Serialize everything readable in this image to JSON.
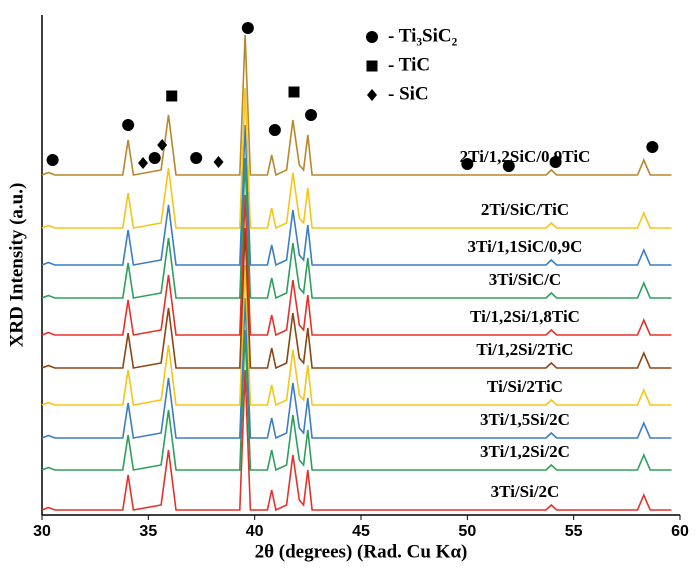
{
  "chart_data": {
    "type": "line",
    "x_label": "2θ (degrees) (Rad. Cu Kα)",
    "y_label": "XRD Intensity (a.u.)",
    "xlim": [
      30,
      60
    ],
    "xticks": [
      30,
      35,
      40,
      45,
      50,
      55,
      60
    ],
    "ylim": [
      0,
      100
    ],
    "x": [
      30,
      30.3,
      30.6,
      33.8,
      34.05,
      34.3,
      35.6,
      35.95,
      36.3,
      39.3,
      39.55,
      39.8,
      40.6,
      40.8,
      41.0,
      41.5,
      41.8,
      42.1,
      42.3,
      42.5,
      42.7,
      53.7,
      53.95,
      54.2,
      58.0,
      58.3,
      58.6,
      59.6
    ],
    "series": [
      {
        "name": "2Ti/1,2SiC/0,9TiC",
        "color": "#b8862b",
        "values": [
          68,
          68.5,
          68,
          68,
          75,
          68,
          69,
          80,
          68,
          68,
          96,
          68,
          68,
          72,
          68,
          69,
          79,
          70,
          69,
          76,
          68,
          68,
          69,
          68,
          68,
          71,
          68,
          68
        ]
      },
      {
        "name": "2Ti/SiC/TiC",
        "color": "#f5c518",
        "values": [
          57.4,
          57.9,
          57.4,
          57.4,
          64.4,
          57.4,
          58.4,
          69.4,
          57.4,
          57.4,
          85.4,
          57.4,
          57.4,
          61.4,
          57.4,
          58.4,
          68.4,
          59.4,
          58.4,
          65.4,
          57.4,
          57.4,
          58.4,
          57.4,
          57.4,
          60.4,
          57.4,
          57.4
        ]
      },
      {
        "name": "3Ti/1,1SiC/0,9C",
        "color": "#3b7dc4",
        "values": [
          50,
          50.5,
          50,
          50,
          57,
          50,
          51,
          62,
          50,
          50,
          78,
          50,
          50,
          54,
          50,
          51,
          61,
          52,
          51,
          58,
          50,
          50,
          51,
          50,
          50,
          53,
          50,
          50
        ]
      },
      {
        "name": "3Ti/SiC/C",
        "color": "#2ca05a",
        "values": [
          43.4,
          43.9,
          43.4,
          43.4,
          50.4,
          43.4,
          44.4,
          55.4,
          43.4,
          43.4,
          71.4,
          43.4,
          43.4,
          47.4,
          43.4,
          44.4,
          54.4,
          45.4,
          44.4,
          51.4,
          43.4,
          43.4,
          44.4,
          43.4,
          43.4,
          46.4,
          43.4,
          43.4
        ]
      },
      {
        "name": "Ti/1,2Si/1,8TiC",
        "color": "#e8302a",
        "values": [
          36,
          36.5,
          36,
          36,
          43,
          36,
          37,
          48,
          36,
          36,
          64,
          36,
          36,
          40,
          36,
          37,
          47,
          38,
          37,
          44,
          36,
          36,
          37,
          36,
          36,
          39,
          36,
          36
        ]
      },
      {
        "name": "Ti/1,2Si/2TiC",
        "color": "#8b4513",
        "values": [
          29.4,
          29.9,
          29.4,
          29.4,
          36.4,
          29.4,
          30.4,
          41.4,
          29.4,
          29.4,
          57.4,
          29.4,
          29.4,
          33.4,
          29.4,
          30.4,
          40.4,
          31.4,
          30.4,
          37.4,
          29.4,
          29.4,
          30.4,
          29.4,
          29.4,
          32.4,
          29.4,
          29.4
        ]
      },
      {
        "name": "Ti/Si/2TiC",
        "color": "#f5c518",
        "values": [
          22,
          22.5,
          22,
          22,
          29,
          22,
          23,
          34,
          22,
          22,
          50,
          22,
          22,
          26,
          22,
          23,
          33,
          24,
          23,
          30,
          22,
          22,
          23,
          22,
          22,
          25,
          22,
          22
        ]
      },
      {
        "name": "3Ti/1,5Si/2C",
        "color": "#3b7dc4",
        "values": [
          15.4,
          15.9,
          15.4,
          15.4,
          22.4,
          15.4,
          16.4,
          27.4,
          15.4,
          15.4,
          43.4,
          15.4,
          15.4,
          19.4,
          15.4,
          16.4,
          26.4,
          17.4,
          16.4,
          23.4,
          15.4,
          15.4,
          16.4,
          15.4,
          15.4,
          18.4,
          15.4,
          15.4
        ]
      },
      {
        "name": "3Ti/1,2Si/2C",
        "color": "#2ca05a",
        "values": [
          9,
          9.5,
          9,
          9,
          16,
          9,
          10,
          21,
          9,
          9,
          37,
          9,
          9,
          13,
          9,
          10,
          20,
          11,
          10,
          17,
          9,
          9,
          10,
          9,
          9,
          12,
          9,
          9
        ]
      },
      {
        "name": "3Ti/Si/2C",
        "color": "#e8302a",
        "values": [
          1,
          1.5,
          1,
          1,
          8,
          1,
          2,
          13,
          1,
          1,
          29,
          1,
          1,
          5,
          1,
          2,
          12,
          3,
          2,
          9,
          1,
          1,
          2,
          1,
          1,
          4,
          1,
          1
        ]
      }
    ],
    "legend": [
      {
        "symbol": "circle",
        "label": "- Ti₃SiC₂"
      },
      {
        "symbol": "square",
        "label": "- TiC"
      },
      {
        "symbol": "diamond",
        "label": "- SiC"
      }
    ],
    "markers": [
      {
        "symbol": "circle",
        "x": 30.5,
        "y": 71
      },
      {
        "symbol": "circle",
        "x": 34.05,
        "y": 78
      },
      {
        "symbol": "diamond",
        "x": 34.75,
        "y": 70.4
      },
      {
        "symbol": "circle",
        "x": 35.3,
        "y": 71.4
      },
      {
        "symbol": "diamond",
        "x": 35.65,
        "y": 74
      },
      {
        "symbol": "square",
        "x": 36.1,
        "y": 83.8
      },
      {
        "symbol": "circle",
        "x": 37.25,
        "y": 71.4
      },
      {
        "symbol": "diamond",
        "x": 38.3,
        "y": 70.6
      },
      {
        "symbol": "circle",
        "x": 39.68,
        "y": 97.4
      },
      {
        "symbol": "circle",
        "x": 40.95,
        "y": 77
      },
      {
        "symbol": "square",
        "x": 41.85,
        "y": 84.6
      },
      {
        "symbol": "circle",
        "x": 42.65,
        "y": 80
      },
      {
        "symbol": "circle",
        "x": 50,
        "y": 70.2
      },
      {
        "symbol": "circle",
        "x": 51.95,
        "y": 69.8
      },
      {
        "symbol": "circle",
        "x": 54.15,
        "y": 70.6
      },
      {
        "symbol": "circle",
        "x": 58.7,
        "y": 73.6
      }
    ]
  }
}
